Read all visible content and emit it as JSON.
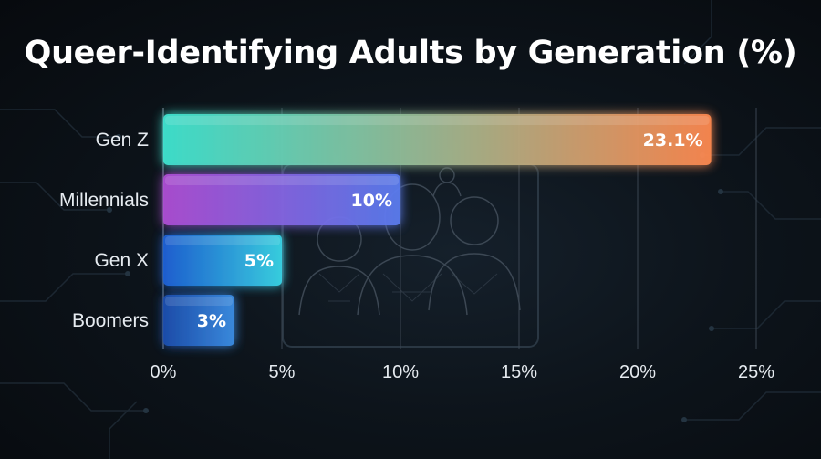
{
  "chart_data": {
    "type": "bar",
    "orientation": "horizontal",
    "title": "Queer-Identifying Adults by Generation (%)",
    "categories": [
      "Gen Z",
      "Millennials",
      "Gen X",
      "Boomers"
    ],
    "values": [
      23.1,
      10,
      5,
      3
    ],
    "data_labels": [
      "23.1%",
      "10%",
      "5%",
      "3%"
    ],
    "xlim": [
      0,
      25
    ],
    "x_ticks": [
      0,
      5,
      10,
      15,
      20,
      25
    ],
    "x_tick_labels": [
      "0%",
      "5%",
      "10%",
      "15%",
      "20%",
      "25%"
    ],
    "grid": "vertical",
    "legend": "none",
    "bar_gradients": [
      [
        "#3fe6d2",
        "#ff8a50"
      ],
      [
        "#b04fd6",
        "#5a7cf0"
      ],
      [
        "#1f62d8",
        "#3ad6e8"
      ],
      [
        "#1d4fb0",
        "#3c8fe6"
      ]
    ]
  },
  "colors": {
    "background": "#0b1016",
    "text": "#e6ebf0",
    "gridline": "#3a4450"
  },
  "background_icon": "people-network-illustration"
}
